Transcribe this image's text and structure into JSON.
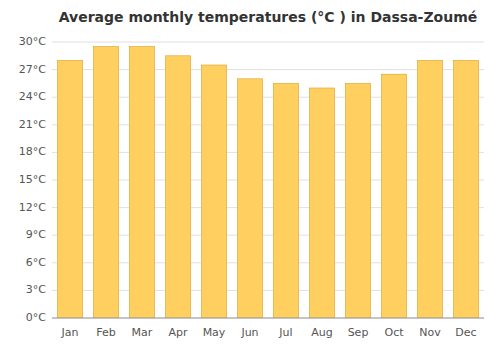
{
  "chart_data": {
    "type": "bar",
    "title": "Average monthly temperatures (°C ) in Dassa-Zoumé",
    "categories": [
      "Jan",
      "Feb",
      "Mar",
      "Apr",
      "May",
      "Jun",
      "Jul",
      "Aug",
      "Sep",
      "Oct",
      "Nov",
      "Dec"
    ],
    "values": [
      28.0,
      29.5,
      29.5,
      28.5,
      27.5,
      26.0,
      25.5,
      25.0,
      25.5,
      26.5,
      28.0,
      28.0
    ],
    "color": "#FFD060",
    "ylim": [
      0,
      30
    ],
    "yticks": [
      {
        "value": 0,
        "label": "0°C"
      },
      {
        "value": 3,
        "label": "3°C"
      },
      {
        "value": 6,
        "label": "6°C"
      },
      {
        "value": 9,
        "label": "9°C"
      },
      {
        "value": 12,
        "label": "12°C"
      },
      {
        "value": 15,
        "label": "15°C"
      },
      {
        "value": 18,
        "label": "18°C"
      },
      {
        "value": 21,
        "label": "21°C"
      },
      {
        "value": 24,
        "label": "24°C"
      },
      {
        "value": 27,
        "label": "27°C"
      },
      {
        "value": 30,
        "label": "30°C"
      }
    ],
    "grid": true
  }
}
